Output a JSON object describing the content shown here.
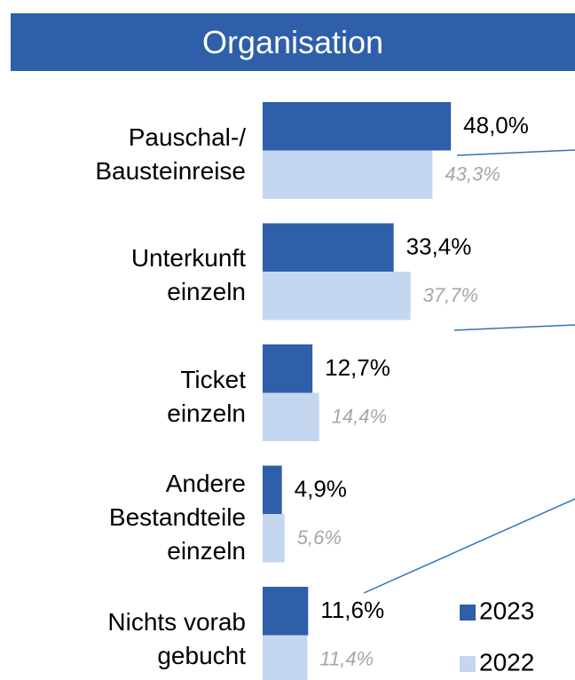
{
  "chart_data": {
    "type": "barh",
    "title": "Organisation",
    "categories": [
      "Pauschal-/\nBausteinreise",
      "Unterkunft\neinzeln",
      "Ticket\neinzeln",
      "Andere\nBestandteile\neinzeln",
      "Nichts vorab\ngebucht"
    ],
    "series": [
      {
        "name": "2023",
        "color": "#2e5fa8",
        "values": [
          48.0,
          33.4,
          12.7,
          4.9,
          11.6
        ],
        "value_labels": [
          "48,0%",
          "33,4%",
          "12,7%",
          "4,9%",
          "11,6%"
        ]
      },
      {
        "name": "2022",
        "color": "#c5d7f0",
        "values": [
          43.3,
          37.7,
          14.4,
          5.6,
          11.4
        ],
        "value_labels": [
          "43,3%",
          "37,7%",
          "14,4%",
          "5,6%",
          "11,4%"
        ]
      }
    ],
    "legend": "bottom-right"
  }
}
